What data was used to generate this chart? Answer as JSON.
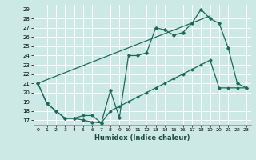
{
  "xlabel": "Humidex (Indice chaleur)",
  "background_color": "#cce9e5",
  "grid_color": "#ffffff",
  "line_color": "#1a6b5a",
  "xlim": [
    -0.5,
    23.5
  ],
  "ylim": [
    16.5,
    29.5
  ],
  "yticks": [
    17,
    18,
    19,
    20,
    21,
    22,
    23,
    24,
    25,
    26,
    27,
    28,
    29
  ],
  "xticks": [
    0,
    1,
    2,
    3,
    4,
    5,
    6,
    7,
    8,
    9,
    10,
    11,
    12,
    13,
    14,
    15,
    16,
    17,
    18,
    19,
    20,
    21,
    22,
    23
  ],
  "line1_x": [
    0,
    1,
    2,
    3,
    4,
    5,
    6,
    7,
    8,
    9,
    10,
    11,
    12,
    13,
    14,
    15,
    16,
    17,
    18,
    19,
    20,
    21,
    22,
    23
  ],
  "line1_y": [
    21.0,
    18.8,
    18.0,
    17.2,
    17.2,
    17.0,
    16.8,
    16.7,
    20.2,
    17.3,
    24.0,
    24.0,
    24.3,
    27.0,
    26.8,
    26.2,
    26.5,
    27.5,
    29.0,
    28.0,
    27.5,
    24.8,
    21.0,
    20.5
  ],
  "line2_x": [
    0,
    19
  ],
  "line2_y": [
    21.0,
    28.3
  ],
  "line3_x": [
    0,
    1,
    2,
    3,
    4,
    5,
    6,
    7,
    8,
    9,
    10,
    11,
    12,
    13,
    14,
    15,
    16,
    17,
    18,
    19,
    20,
    21,
    22,
    23
  ],
  "line3_y": [
    21.0,
    18.8,
    18.0,
    17.2,
    17.2,
    17.5,
    17.5,
    16.7,
    18.0,
    18.5,
    19.0,
    19.5,
    20.0,
    20.5,
    21.0,
    21.5,
    22.0,
    22.5,
    23.0,
    23.5,
    20.5,
    20.5,
    20.5,
    20.5
  ]
}
